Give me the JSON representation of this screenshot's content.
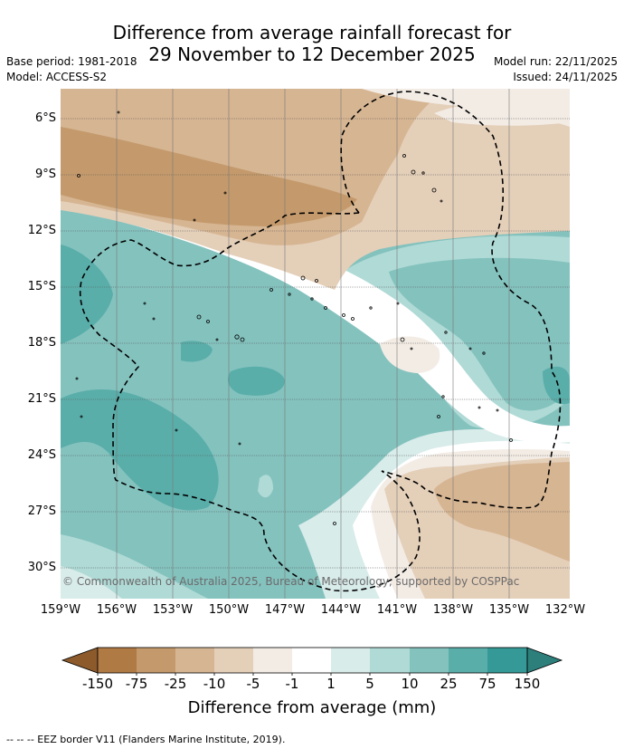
{
  "title_line1": "Difference from average rainfall forecast for",
  "title_line2": "29 November to 12 December 2025",
  "base_period": "Base period: 1981-2018",
  "model": "Model: ACCESS-S2",
  "model_run": "Model run: 22/11/2025",
  "issued": "Issued: 24/11/2025",
  "credit": "© Commonwealth of Australia 2025, Bureau of Meteorology, supported by COSPPac",
  "lon_ticks": [
    "159°W",
    "156°W",
    "153°W",
    "150°W",
    "147°W",
    "144°W",
    "141°W",
    "138°W",
    "135°W",
    "132°W"
  ],
  "lat_ticks": [
    "6°S",
    "9°S",
    "12°S",
    "15°S",
    "18°S",
    "21°S",
    "24°S",
    "27°S",
    "30°S"
  ],
  "colorbar": {
    "title": "Difference from average (mm)",
    "labels": [
      "-150",
      "-75",
      "-25",
      "-10",
      "-5",
      "-1",
      "1",
      "5",
      "10",
      "25",
      "75",
      "150"
    ],
    "colors": [
      "#8c5a2b",
      "#b07a44",
      "#c49a6c",
      "#d6b592",
      "#e4cfb9",
      "#f3ece5",
      "#ffffff",
      "#d8ecea",
      "#b0dad6",
      "#84c2be",
      "#5aaeaa",
      "#359a97",
      "#2d7f7c"
    ]
  },
  "footnote": "-- -- -- EEZ border V11 (Flanders Marine Institute, 2019)."
}
